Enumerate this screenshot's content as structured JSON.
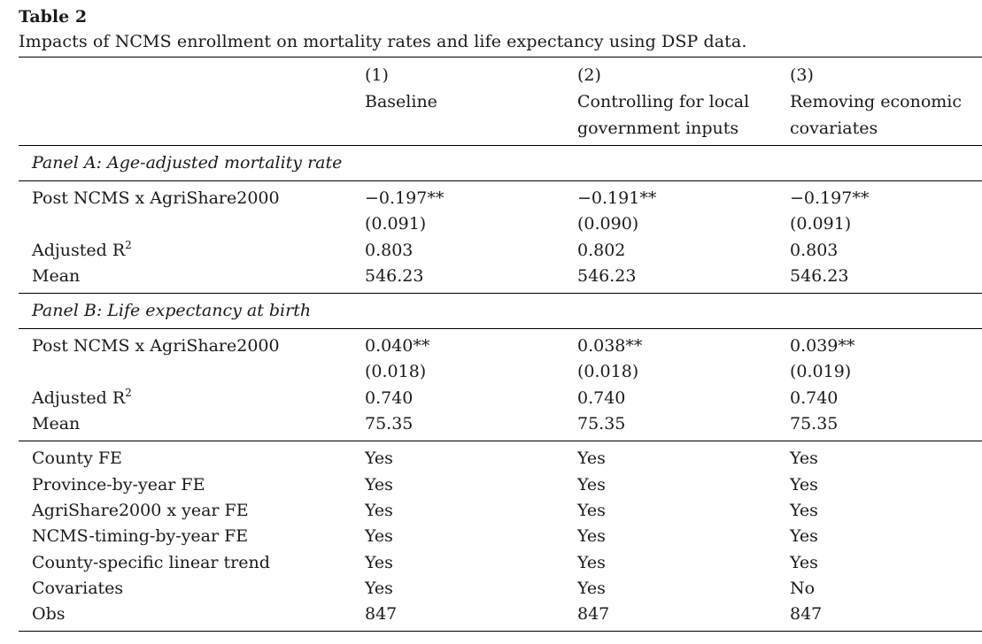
{
  "table_label": "Table 2",
  "caption": "Impacts of NCMS enrollment on mortality rates and life expectancy using DSP data.",
  "columns": [
    {
      "number": "(1)",
      "title_lines": [
        "Baseline",
        ""
      ]
    },
    {
      "number": "(2)",
      "title_lines": [
        "Controlling for local",
        "government inputs"
      ]
    },
    {
      "number": "(3)",
      "title_lines": [
        "Removing economic",
        "covariates"
      ]
    }
  ],
  "panels": [
    {
      "title": "Panel A: Age-adjusted mortality rate",
      "coef_label": "Post NCMS x AgriShare2000",
      "coefs": [
        "−0.197**",
        "−0.191**",
        "−0.197**"
      ],
      "ses": [
        "(0.091)",
        "(0.090)",
        "(0.091)"
      ],
      "r2_label": "Adjusted R",
      "r2_sup": "2",
      "r2": [
        "0.803",
        "0.802",
        "0.803"
      ],
      "mean_label": "Mean",
      "means": [
        "546.23",
        "546.23",
        "546.23"
      ]
    },
    {
      "title": "Panel B: Life expectancy at birth",
      "coef_label": "Post NCMS x AgriShare2000",
      "coefs": [
        "0.040**",
        "0.038**",
        "0.039**"
      ],
      "ses": [
        "(0.018)",
        "(0.018)",
        "(0.019)"
      ],
      "r2_label": "Adjusted R",
      "r2_sup": "2",
      "r2": [
        "0.740",
        "0.740",
        "0.740"
      ],
      "mean_label": "Mean",
      "means": [
        "75.35",
        "75.35",
        "75.35"
      ]
    }
  ],
  "controls": [
    {
      "label": "County FE",
      "values": [
        "Yes",
        "Yes",
        "Yes"
      ]
    },
    {
      "label": "Province-by-year FE",
      "values": [
        "Yes",
        "Yes",
        "Yes"
      ]
    },
    {
      "label": "AgriShare2000 x year FE",
      "values": [
        "Yes",
        "Yes",
        "Yes"
      ]
    },
    {
      "label": "NCMS-timing-by-year FE",
      "values": [
        "Yes",
        "Yes",
        "Yes"
      ]
    },
    {
      "label": "County-specific linear trend",
      "values": [
        "Yes",
        "Yes",
        "Yes"
      ]
    },
    {
      "label": "Covariates",
      "values": [
        "Yes",
        "Yes",
        "No"
      ]
    },
    {
      "label": "Obs",
      "values": [
        "847",
        "847",
        "847"
      ]
    }
  ]
}
